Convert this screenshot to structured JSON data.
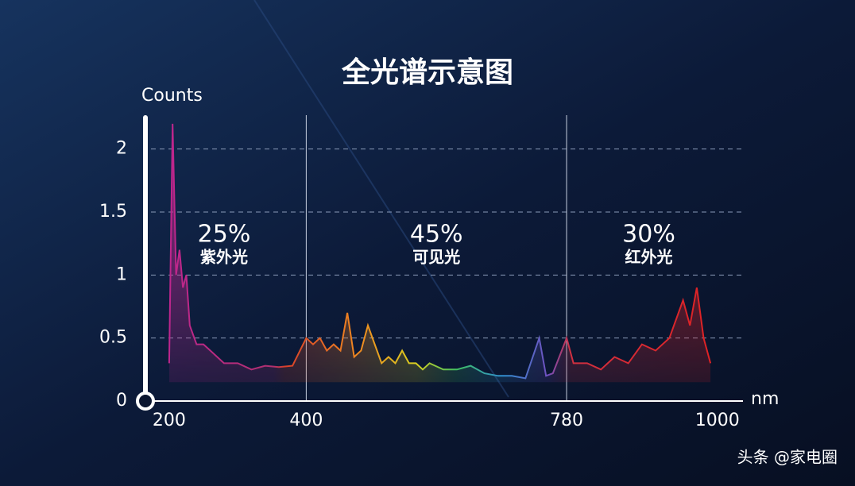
{
  "chart_data": {
    "type": "area",
    "title": "全光谱示意图",
    "ylabel": "Counts",
    "xlabel": "nm",
    "x": [
      200,
      205,
      210,
      215,
      220,
      225,
      230,
      240,
      250,
      260,
      280,
      300,
      320,
      340,
      360,
      380,
      400,
      410,
      420,
      430,
      440,
      450,
      460,
      470,
      480,
      490,
      500,
      510,
      520,
      530,
      540,
      550,
      560,
      570,
      580,
      600,
      620,
      640,
      660,
      680,
      700,
      720,
      740,
      750,
      760,
      780,
      790,
      810,
      830,
      850,
      870,
      890,
      910,
      930,
      950,
      960,
      970,
      980,
      990
    ],
    "series": [
      {
        "name": "Counts",
        "values": [
          0.3,
          2.2,
          1.0,
          1.2,
          0.9,
          1.0,
          0.6,
          0.45,
          0.45,
          0.4,
          0.3,
          0.3,
          0.25,
          0.28,
          0.27,
          0.28,
          0.5,
          0.45,
          0.5,
          0.4,
          0.45,
          0.4,
          0.7,
          0.35,
          0.4,
          0.6,
          0.45,
          0.3,
          0.35,
          0.3,
          0.4,
          0.3,
          0.3,
          0.25,
          0.3,
          0.25,
          0.25,
          0.28,
          0.22,
          0.2,
          0.2,
          0.18,
          0.5,
          0.2,
          0.22,
          0.5,
          0.3,
          0.3,
          0.25,
          0.35,
          0.3,
          0.45,
          0.4,
          0.5,
          0.8,
          0.6,
          0.9,
          0.5,
          0.3
        ]
      }
    ],
    "xlim": [
      185,
      1020
    ],
    "xticks": [
      200,
      400,
      780,
      1000
    ],
    "ylim": [
      0,
      2.25
    ],
    "yticks": [
      0,
      0.5,
      1,
      1.5,
      2
    ],
    "grid": true,
    "regions": {
      "names": [
        "紫外光",
        "可见光",
        "红外光"
      ],
      "values": [
        25,
        45,
        30
      ],
      "value_labels": [
        "25%",
        "45%",
        "30%"
      ]
    },
    "watermark": "头条 @家电圈"
  }
}
